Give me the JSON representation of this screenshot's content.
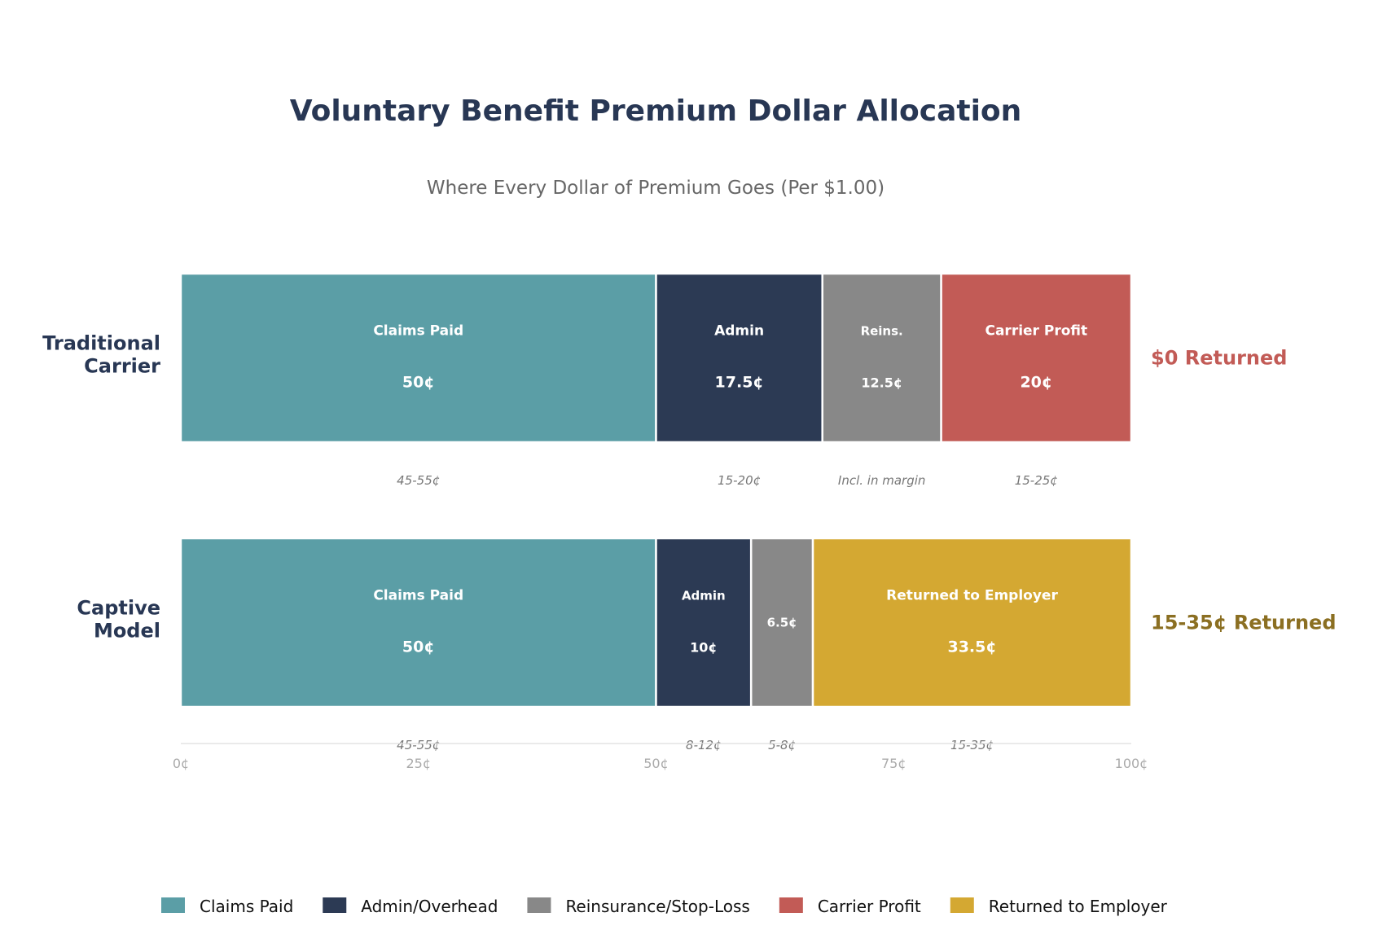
{
  "chart_data": {
    "type": "bar",
    "orientation": "horizontal-stacked",
    "title": "Voluntary Benefit Premium Dollar Allocation",
    "subtitle": "Where Every Dollar of Premium Goes (Per $1.00)",
    "xlim": [
      0,
      100
    ],
    "xticks": [
      "0¢",
      "25¢",
      "50¢",
      "75¢",
      "100¢"
    ],
    "xtick_values": [
      0,
      25,
      50,
      75,
      100
    ],
    "grid": false,
    "legend_placement": "bottom",
    "legend": [
      {
        "label": "Claims Paid",
        "color": "#5B9EA6"
      },
      {
        "label": "Admin/Overhead",
        "color": "#2C3A54"
      },
      {
        "label": "Reinsurance/Stop-Loss",
        "color": "#888888"
      },
      {
        "label": "Carrier Profit",
        "color": "#C25B56"
      },
      {
        "label": "Returned to Employer",
        "color": "#D4A832"
      }
    ],
    "rows": [
      {
        "category": "Traditional\nCarrier",
        "summary": "$0 Returned",
        "summary_color": "#C25B56",
        "segments": [
          {
            "label": "Claims Paid",
            "value": 50,
            "value_label": "50¢",
            "range": "45-55¢",
            "color": "#5B9EA6"
          },
          {
            "label": "Admin",
            "value": 17.5,
            "value_label": "17.5¢",
            "range": "15-20¢",
            "color": "#2C3A54"
          },
          {
            "label": "Reins.",
            "value": 12.5,
            "value_label": "12.5¢",
            "range": "Incl. in margin",
            "color": "#888888"
          },
          {
            "label": "Carrier Profit",
            "value": 20,
            "value_label": "20¢",
            "range": "15-25¢",
            "color": "#C25B56"
          }
        ]
      },
      {
        "category": "Captive\nModel",
        "summary": "15-35¢ Returned",
        "summary_color": "#8B6F22",
        "segments": [
          {
            "label": "Claims Paid",
            "value": 50,
            "value_label": "50¢",
            "range": "45-55¢",
            "color": "#5B9EA6"
          },
          {
            "label": "Admin",
            "value": 10,
            "value_label": "10¢",
            "range": "8-12¢",
            "color": "#2C3A54"
          },
          {
            "label": "",
            "value": 6.5,
            "value_label": "6.5¢",
            "range": "5-8¢",
            "color": "#888888"
          },
          {
            "label": "Returned to Employer",
            "value": 33.5,
            "value_label": "33.5¢",
            "range": "15-35¢",
            "color": "#D4A832"
          }
        ]
      }
    ]
  }
}
